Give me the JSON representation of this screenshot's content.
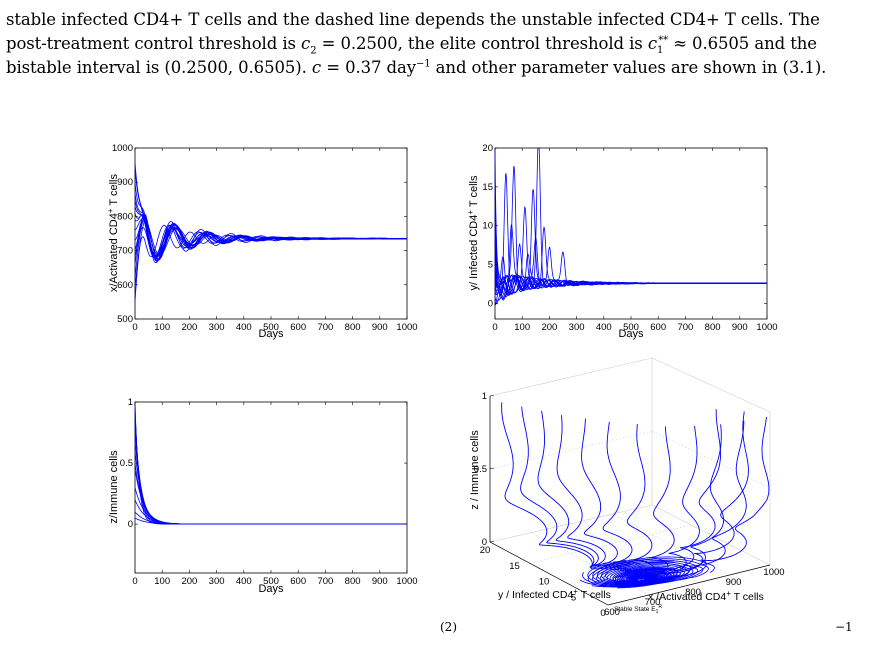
{
  "text": {
    "l1": "stable infected CD4+ T cells and the dashed line depends the unstable infected CD4+ T cells. The",
    "l2a": "post-treatment control threshold is ",
    "l2b": "c",
    "l2c": "2",
    "l2d": " = 0.2500, the elite control threshold is ",
    "l2e": "c",
    "l2f": "1",
    "l2g": "**",
    "l2h": " ≈ 0.6505 and the",
    "l3a": "bistable interval is (0.2500, 0.6505). ",
    "l3b": "c",
    "l3c": " = 0.37  day",
    "l3d": "−1",
    "l3e": " and other parameter values are shown in (3.1).",
    "cap_sup": "(2)",
    "cap_sup2": "−1"
  },
  "figure": {
    "plots": [
      {
        "id": "x",
        "ylabel": "x/Activated CD4",
        "ylabel_sup": "+",
        "ylabel_tail": " T cells",
        "xlabel": "Days",
        "xticks": [
          "0",
          "100",
          "200",
          "300",
          "400",
          "500",
          "600",
          "700",
          "800",
          "900",
          "1000"
        ],
        "yticks": [
          "500",
          "600",
          "700",
          "800",
          "900",
          "1000"
        ],
        "xlim": [
          0,
          1000
        ],
        "ylim": [
          500,
          1000
        ],
        "steady_state": 735,
        "color": "#0000ff"
      },
      {
        "id": "y",
        "ylabel": "y/ Infected CD4",
        "ylabel_sup": "+",
        "ylabel_tail": " T cells",
        "xlabel": "Days",
        "xticks": [
          "0",
          "100",
          "200",
          "300",
          "400",
          "500",
          "600",
          "700",
          "800",
          "900",
          "1000"
        ],
        "yticks": [
          "0",
          "5",
          "10",
          "15",
          "20"
        ],
        "xlim": [
          0,
          1000
        ],
        "ylim": [
          -2,
          20
        ],
        "steady_state": 2.6,
        "color": "#0000ff"
      },
      {
        "id": "z",
        "ylabel": "z/Immune cells",
        "xlabel": "Days",
        "xticks": [
          "0",
          "100",
          "200",
          "300",
          "400",
          "500",
          "600",
          "700",
          "800",
          "900",
          "1000"
        ],
        "yticks": [
          "0",
          "0.5",
          "1"
        ],
        "xlim": [
          0,
          1000
        ],
        "ylim": [
          -0.4,
          1
        ],
        "steady_state": 0,
        "color": "#0000ff"
      },
      {
        "id": "phase3d",
        "zlabel": "z / Immune cells",
        "ylabel": "y / Infected CD4",
        "ylabel_sup": "+",
        "ylabel_tail": " T cells",
        "xlabel": "x /Activated CD4",
        "xlabel_sup": "+",
        "xlabel_tail": " T cells",
        "zticks": [
          "0",
          "0.5",
          "1"
        ],
        "yticks": [
          "20",
          "15",
          "10",
          "5",
          "0"
        ],
        "xticks": [
          "600",
          "700",
          "800",
          "900",
          "1000"
        ],
        "annotation": "Stable State E",
        "annotation_sub": "1",
        "annotation_sup": "R",
        "color": "#0000ff"
      }
    ]
  }
}
